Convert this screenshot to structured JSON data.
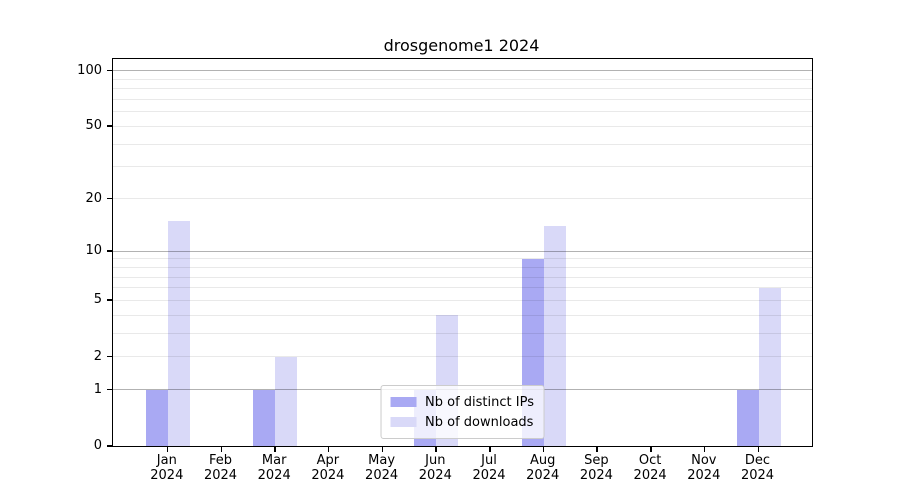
{
  "title": "drosgenome1 2024",
  "legend": {
    "items": [
      {
        "label": "Nb of distinct IPs",
        "color": "#a9a9f3"
      },
      {
        "label": "Nb of downloads",
        "color": "#d9d9f8"
      }
    ]
  },
  "chart_data": {
    "type": "bar",
    "title": "drosgenome1 2024",
    "categories": [
      "Jan",
      "Feb",
      "Mar",
      "Apr",
      "May",
      "Jun",
      "Jul",
      "Aug",
      "Sep",
      "Oct",
      "Nov",
      "Dec"
    ],
    "year": "2024",
    "series": [
      {
        "name": "Nb of distinct IPs",
        "color": "#a9a9f3",
        "values": [
          1,
          0,
          1,
          0,
          0,
          1,
          0,
          9,
          0,
          0,
          0,
          1
        ]
      },
      {
        "name": "Nb of downloads",
        "color": "#d9d9f8",
        "values": [
          15,
          0,
          2,
          0,
          0,
          4,
          0,
          14,
          0,
          0,
          0,
          6
        ]
      }
    ],
    "xlabel": "",
    "ylabel": "",
    "yscale": "log1p",
    "ylim": [
      0,
      116
    ],
    "yticks": [
      0,
      1,
      2,
      5,
      10,
      20,
      50,
      100
    ],
    "major_gridlines": [
      1,
      10,
      100
    ],
    "minor_gridlines": [
      2,
      3,
      4,
      5,
      6,
      7,
      8,
      9,
      20,
      30,
      40,
      50,
      60,
      70,
      80,
      90
    ],
    "grid": true,
    "legend_position": "lower center"
  }
}
